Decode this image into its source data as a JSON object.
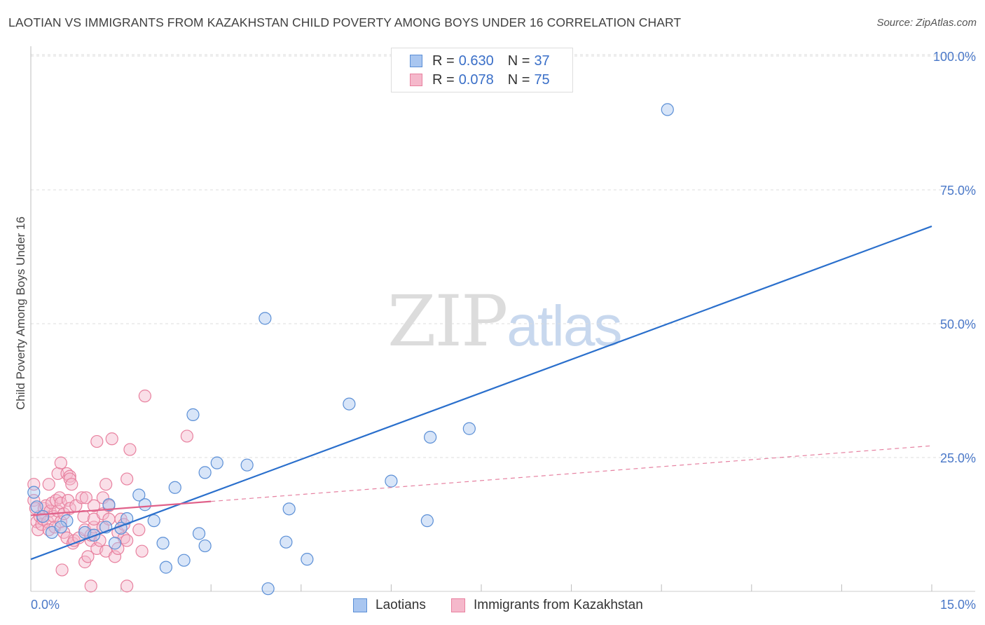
{
  "title": "LAOTIAN VS IMMIGRANTS FROM KAZAKHSTAN CHILD POVERTY AMONG BOYS UNDER 16 CORRELATION CHART",
  "source": "Source: ZipAtlas.com",
  "watermark": {
    "zip": "ZIP",
    "atlas": "atlas"
  },
  "legend": {
    "rows": [
      {
        "r_label": "R =",
        "r_value": "0.630",
        "n_label": "N =",
        "n_value": "37"
      },
      {
        "r_label": "R =",
        "r_value": "0.078",
        "n_label": "N =",
        "n_value": "75"
      }
    ]
  },
  "bottom_legend": {
    "series_a": "Laotians",
    "series_b": "Immigrants from Kazakhstan"
  },
  "colors": {
    "blue_fill": "#a9c6f0",
    "blue_stroke": "#5b8fd6",
    "blue_line": "#2a6fcc",
    "pink_fill": "#f5b8cb",
    "pink_stroke": "#e8819f",
    "pink_line": "#e0618a",
    "grid": "#dcdcdc",
    "tick_text": "#4a78c8"
  },
  "chart_data": {
    "type": "scatter",
    "title": "LAOTIAN VS IMMIGRANTS FROM KAZAKHSTAN CHILD POVERTY AMONG BOYS UNDER 16 CORRELATION CHART",
    "xlabel": "",
    "ylabel": "Child Poverty Among Boys Under 16",
    "xlim": [
      0,
      15
    ],
    "ylim": [
      0,
      100
    ],
    "x_tick_labels": [
      "0.0%",
      "15.0%"
    ],
    "y_ticks": [
      25,
      50,
      75,
      100
    ],
    "y_tick_labels": [
      "25.0%",
      "50.0%",
      "75.0%",
      "100.0%"
    ],
    "grid": true,
    "series": [
      {
        "name": "Laotians",
        "R": 0.63,
        "N": 37,
        "trend": {
          "x": [
            0,
            15
          ],
          "y": [
            6.0,
            68.2
          ],
          "style": "solid"
        },
        "points": [
          {
            "x": 0.05,
            "y": 18.5
          },
          {
            "x": 0.1,
            "y": 15.8
          },
          {
            "x": 0.2,
            "y": 14.0
          },
          {
            "x": 0.35,
            "y": 11.0
          },
          {
            "x": 0.6,
            "y": 13.2
          },
          {
            "x": 0.5,
            "y": 12.0
          },
          {
            "x": 0.9,
            "y": 11.0
          },
          {
            "x": 1.05,
            "y": 10.5
          },
          {
            "x": 1.25,
            "y": 12.0
          },
          {
            "x": 1.3,
            "y": 16.2
          },
          {
            "x": 1.4,
            "y": 9.0
          },
          {
            "x": 1.5,
            "y": 11.8
          },
          {
            "x": 1.6,
            "y": 13.6
          },
          {
            "x": 1.8,
            "y": 18.0
          },
          {
            "x": 1.9,
            "y": 16.2
          },
          {
            "x": 2.05,
            "y": 13.2
          },
          {
            "x": 2.2,
            "y": 9.0
          },
          {
            "x": 2.25,
            "y": 4.5
          },
          {
            "x": 2.4,
            "y": 19.4
          },
          {
            "x": 2.55,
            "y": 5.8
          },
          {
            "x": 2.7,
            "y": 33.0
          },
          {
            "x": 2.8,
            "y": 10.8
          },
          {
            "x": 2.9,
            "y": 8.5
          },
          {
            "x": 2.9,
            "y": 22.2
          },
          {
            "x": 3.1,
            "y": 24.0
          },
          {
            "x": 3.6,
            "y": 23.6
          },
          {
            "x": 3.9,
            "y": 51.0
          },
          {
            "x": 3.95,
            "y": 0.5
          },
          {
            "x": 4.3,
            "y": 15.4
          },
          {
            "x": 4.25,
            "y": 9.2
          },
          {
            "x": 4.6,
            "y": 6.0
          },
          {
            "x": 5.3,
            "y": 35.0
          },
          {
            "x": 6.0,
            "y": 20.6
          },
          {
            "x": 6.6,
            "y": 13.2
          },
          {
            "x": 6.65,
            "y": 28.8
          },
          {
            "x": 7.3,
            "y": 30.4
          },
          {
            "x": 10.6,
            "y": 90.0
          }
        ]
      },
      {
        "name": "Immigrants from Kazakhstan",
        "R": 0.078,
        "N": 75,
        "trend": {
          "x": [
            0,
            15
          ],
          "y": [
            14.2,
            27.2
          ],
          "style": "solid to 3.0 then dashed"
        },
        "points": [
          {
            "x": 0.05,
            "y": 20.0
          },
          {
            "x": 0.05,
            "y": 17.0
          },
          {
            "x": 0.08,
            "y": 15.5
          },
          {
            "x": 0.1,
            "y": 13.0
          },
          {
            "x": 0.12,
            "y": 11.5
          },
          {
            "x": 0.15,
            "y": 14.0
          },
          {
            "x": 0.18,
            "y": 12.5
          },
          {
            "x": 0.2,
            "y": 13.5
          },
          {
            "x": 0.22,
            "y": 15.5
          },
          {
            "x": 0.25,
            "y": 16.0
          },
          {
            "x": 0.28,
            "y": 13.0
          },
          {
            "x": 0.3,
            "y": 11.5
          },
          {
            "x": 0.3,
            "y": 20.0
          },
          {
            "x": 0.32,
            "y": 15.0
          },
          {
            "x": 0.35,
            "y": 16.5
          },
          {
            "x": 0.38,
            "y": 14.0
          },
          {
            "x": 0.4,
            "y": 12.0
          },
          {
            "x": 0.42,
            "y": 17.0
          },
          {
            "x": 0.45,
            "y": 15.0
          },
          {
            "x": 0.45,
            "y": 22.0
          },
          {
            "x": 0.48,
            "y": 17.5
          },
          {
            "x": 0.5,
            "y": 13.0
          },
          {
            "x": 0.5,
            "y": 16.5
          },
          {
            "x": 0.5,
            "y": 24.0
          },
          {
            "x": 0.52,
            "y": 4.0
          },
          {
            "x": 0.55,
            "y": 11.0
          },
          {
            "x": 0.55,
            "y": 14.5
          },
          {
            "x": 0.6,
            "y": 10.0
          },
          {
            "x": 0.6,
            "y": 22.0
          },
          {
            "x": 0.62,
            "y": 17.0
          },
          {
            "x": 0.65,
            "y": 21.5
          },
          {
            "x": 0.65,
            "y": 15.5
          },
          {
            "x": 0.65,
            "y": 21.0
          },
          {
            "x": 0.68,
            "y": 20.0
          },
          {
            "x": 0.7,
            "y": 9.0
          },
          {
            "x": 0.72,
            "y": 9.5
          },
          {
            "x": 0.75,
            "y": 16.0
          },
          {
            "x": 0.8,
            "y": 10.0
          },
          {
            "x": 0.85,
            "y": 17.5
          },
          {
            "x": 0.88,
            "y": 14.0
          },
          {
            "x": 0.9,
            "y": 11.5
          },
          {
            "x": 0.9,
            "y": 5.5
          },
          {
            "x": 0.92,
            "y": 17.5
          },
          {
            "x": 0.95,
            "y": 6.5
          },
          {
            "x": 1.0,
            "y": 9.5
          },
          {
            "x": 1.0,
            "y": 10.5
          },
          {
            "x": 1.0,
            "y": 1.0
          },
          {
            "x": 1.05,
            "y": 16.0
          },
          {
            "x": 1.05,
            "y": 12.0
          },
          {
            "x": 1.05,
            "y": 13.5
          },
          {
            "x": 1.1,
            "y": 8.0
          },
          {
            "x": 1.1,
            "y": 28.0
          },
          {
            "x": 1.15,
            "y": 9.5
          },
          {
            "x": 1.2,
            "y": 12.0
          },
          {
            "x": 1.2,
            "y": 14.5
          },
          {
            "x": 1.2,
            "y": 17.5
          },
          {
            "x": 1.25,
            "y": 7.5
          },
          {
            "x": 1.25,
            "y": 20.0
          },
          {
            "x": 1.3,
            "y": 13.5
          },
          {
            "x": 1.3,
            "y": 16.0
          },
          {
            "x": 1.35,
            "y": 28.5
          },
          {
            "x": 1.4,
            "y": 6.5
          },
          {
            "x": 1.45,
            "y": 11.0
          },
          {
            "x": 1.45,
            "y": 8.0
          },
          {
            "x": 1.5,
            "y": 13.5
          },
          {
            "x": 1.55,
            "y": 12.5
          },
          {
            "x": 1.55,
            "y": 10.0
          },
          {
            "x": 1.6,
            "y": 21.0
          },
          {
            "x": 1.6,
            "y": 9.5
          },
          {
            "x": 1.6,
            "y": 1.0
          },
          {
            "x": 1.65,
            "y": 26.5
          },
          {
            "x": 1.8,
            "y": 11.5
          },
          {
            "x": 1.85,
            "y": 7.5
          },
          {
            "x": 1.9,
            "y": 36.5
          },
          {
            "x": 2.6,
            "y": 29.0
          }
        ]
      }
    ]
  }
}
